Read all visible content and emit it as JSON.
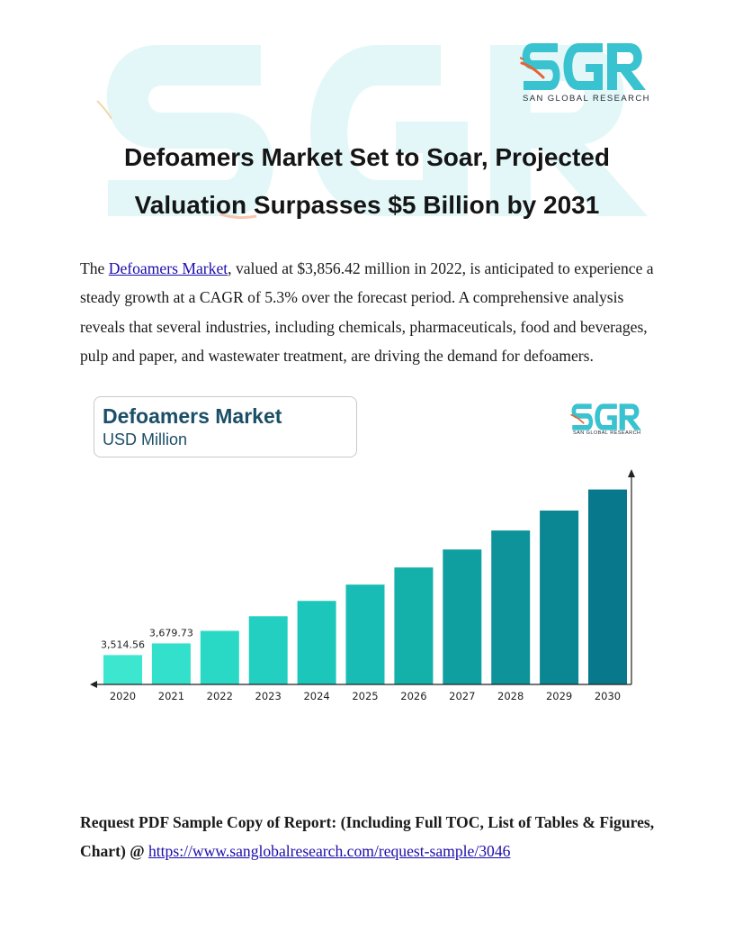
{
  "brand": {
    "logo_text": "SGR",
    "logo_subtitle": "SAN GLOBAL RESEARCH",
    "colors": {
      "logo_teal": "#39c2cf",
      "logo_dark": "#1f2a36",
      "accent_orange": "#e8622f",
      "watermark": "#e3f7f8"
    }
  },
  "article": {
    "title_line1": "Defoamers Market Set to Soar, Projected",
    "title_line2": "Valuation Surpasses $5 Billion by 2031",
    "intro_prefix": "The ",
    "intro_link": "Defoamers Market",
    "intro_rest": ", valued at $3,856.42 million in 2022, is anticipated to experience a steady growth at a CAGR of 5.3% over the forecast period. A comprehensive analysis reveals that several industries, including chemicals, pharmaceuticals, food and beverages, pulp and paper, and wastewater treatment, are driving the demand for defoamers.",
    "cta_text": "Request PDF Sample Copy of Report: (Including Full TOC, List of Tables & Figures, Chart) @ ",
    "cta_link": "https://www.sanglobalresearch.com/request-sample/3046"
  },
  "chart_data": {
    "type": "bar",
    "title": "Defoamers Market",
    "subtitle": "USD Million",
    "categories": [
      "2020",
      "2021",
      "2022",
      "2023",
      "2024",
      "2025",
      "2026",
      "2027",
      "2028",
      "2029",
      "2030"
    ],
    "values": [
      3514.56,
      3679.73,
      3856.42,
      4063,
      4280,
      4510,
      4752,
      5006,
      5274,
      5556,
      5853
    ],
    "data_labels": [
      "3,514.56",
      "3,679.73",
      "",
      "",
      "",
      "",
      "",
      "",
      "",
      "",
      ""
    ],
    "colors": [
      "#3de6cf",
      "#33e0cb",
      "#2ad8c6",
      "#22cfc1",
      "#1dc6bb",
      "#18bcb4",
      "#14b0aa",
      "#109fa1",
      "#0d9399",
      "#0a8793",
      "#08788c"
    ],
    "ylim": [
      3100,
      6000
    ],
    "grid": false
  }
}
